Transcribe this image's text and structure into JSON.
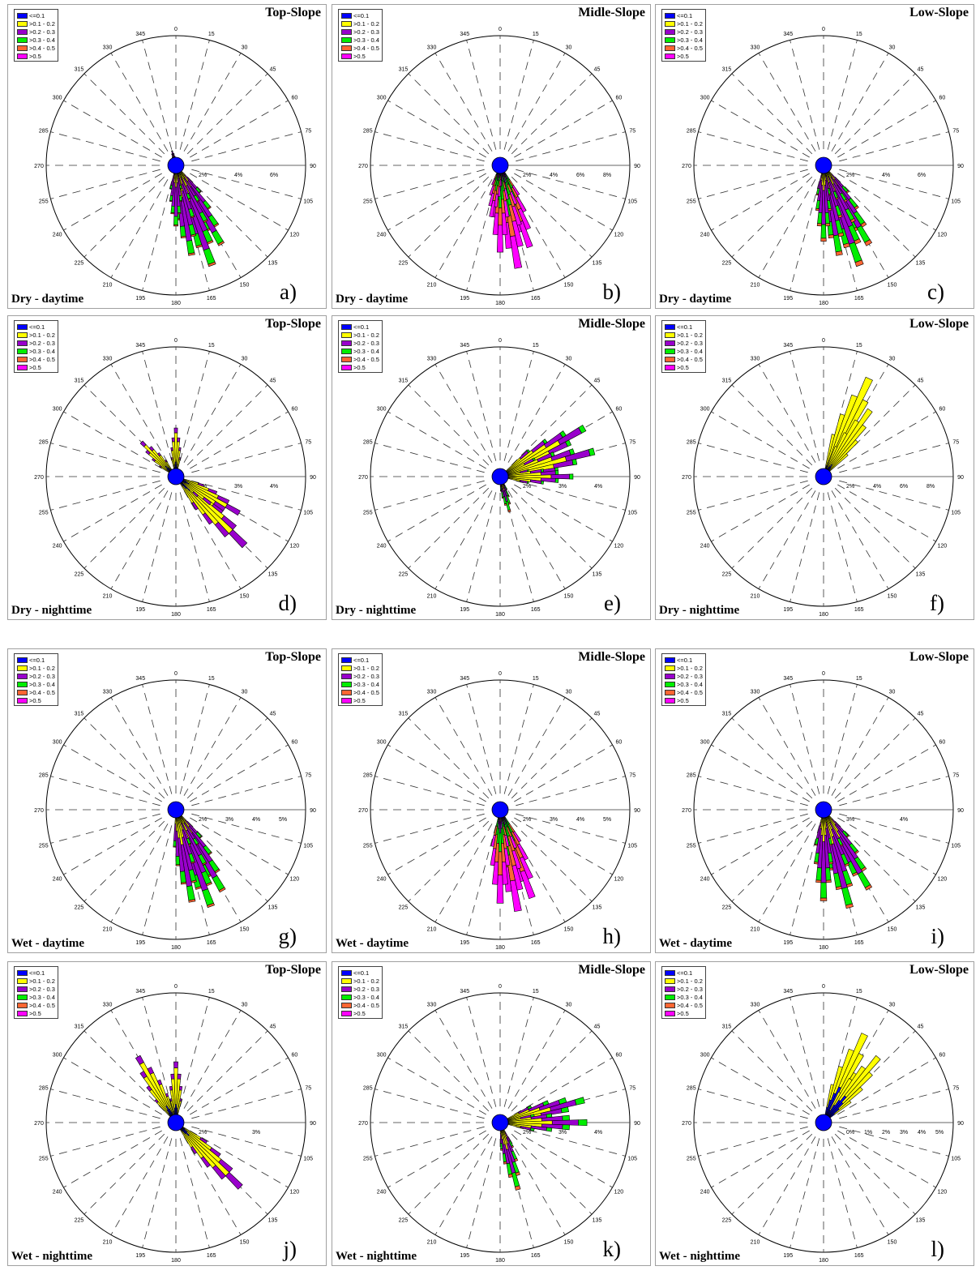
{
  "legend": [
    {
      "label": "<=0.1",
      "color": "#0000ff"
    },
    {
      "label": ">0.1 - 0.2",
      "color": "#ffff00"
    },
    {
      "label": ">0.2 - 0.3",
      "color": "#9900cc"
    },
    {
      "label": ">0.3 - 0.4",
      "color": "#00ee00"
    },
    {
      "label": ">0.4 - 0.5",
      "color": "#ff6633"
    },
    {
      "label": ">0.5",
      "color": "#ff00ff"
    }
  ],
  "direction_labels": [
    "0",
    "15",
    "30",
    "45",
    "60",
    "75",
    "90",
    "105",
    "120",
    "135",
    "150",
    "165",
    "180",
    "195",
    "210",
    "225",
    "240",
    "255",
    "270",
    "285",
    "300",
    "315",
    "330",
    "345"
  ],
  "panels": [
    {
      "letter": "a)",
      "title": "Top-Slope",
      "condition": "Dry - daytime",
      "rings": [
        "2%",
        "4%",
        "6%"
      ]
    },
    {
      "letter": "b)",
      "title": "Midle-Slope",
      "condition": "Dry - daytime",
      "rings": [
        "2%",
        "4%",
        "6%",
        "8%"
      ]
    },
    {
      "letter": "c)",
      "title": "Low-Slope",
      "condition": "Dry - daytime",
      "rings": [
        "2%",
        "4%",
        "6%"
      ]
    },
    {
      "letter": "d)",
      "title": "Top-Slope",
      "condition": "Dry - nighttime",
      "rings": [
        "2%",
        "3%",
        "4%"
      ]
    },
    {
      "letter": "e)",
      "title": "Midle-Slope",
      "condition": "Dry - nighttime",
      "rings": [
        "2%",
        "3%",
        "4%"
      ]
    },
    {
      "letter": "f)",
      "title": "Low-Slope",
      "condition": "Dry - nighttime",
      "rings": [
        "2%",
        "4%",
        "6%",
        "8%"
      ]
    },
    {
      "letter": "g)",
      "title": "Top-Slope",
      "condition": "Wet - daytime",
      "rings": [
        "2%",
        "3%",
        "4%",
        "5%"
      ]
    },
    {
      "letter": "h)",
      "title": "Midle-Slope",
      "condition": "Wet - daytime",
      "rings": [
        "2%",
        "3%",
        "4%",
        "5%"
      ]
    },
    {
      "letter": "i)",
      "title": "Low-Slope",
      "condition": "Wet - daytime",
      "rings": [
        "3%",
        "4%"
      ]
    },
    {
      "letter": "j)",
      "title": "Top-Slope",
      "condition": "Wet - nighttime",
      "rings": [
        "2%",
        "3%"
      ]
    },
    {
      "letter": "k)",
      "title": "Midle-Slope",
      "condition": "Wet - nighttime",
      "rings": [
        "2%",
        "3%",
        "4%"
      ]
    },
    {
      "letter": "l)",
      "title": "Low-Slope",
      "condition": "Wet - nighttime",
      "rings": [
        "0%",
        "1%",
        "2%",
        "3%",
        "4%",
        "5%"
      ]
    }
  ],
  "chart_data": [
    {
      "type": "rose",
      "panel": "a)",
      "title": "Top-Slope",
      "condition": "Dry - daytime",
      "petals": [
        {
          "dir": 150,
          "value": 6,
          "stack": [
            0.06,
            0.3,
            0.48,
            0.14,
            0.02,
            0
          ]
        },
        {
          "dir": 160,
          "value": 7,
          "stack": [
            0.06,
            0.3,
            0.48,
            0.14,
            0.02,
            0
          ]
        },
        {
          "dir": 170,
          "value": 6,
          "stack": [
            0.06,
            0.3,
            0.48,
            0.14,
            0.02,
            0
          ]
        },
        {
          "dir": 180,
          "value": 4,
          "stack": [
            0.06,
            0.3,
            0.48,
            0.14,
            0.02,
            0
          ]
        },
        {
          "dir": 345,
          "value": 1,
          "stack": [
            0.3,
            0.4,
            0.25,
            0.05,
            0,
            0
          ]
        }
      ]
    },
    {
      "type": "rose",
      "panel": "b)",
      "title": "Midle-Slope",
      "condition": "Dry - daytime",
      "petals": [
        {
          "dir": 160,
          "value": 5,
          "stack": [
            0.04,
            0.1,
            0.15,
            0.2,
            0.2,
            0.31
          ]
        },
        {
          "dir": 170,
          "value": 6,
          "stack": [
            0.04,
            0.1,
            0.15,
            0.2,
            0.2,
            0.31
          ]
        },
        {
          "dir": 180,
          "value": 5,
          "stack": [
            0.04,
            0.1,
            0.15,
            0.2,
            0.2,
            0.31
          ]
        },
        {
          "dir": 190,
          "value": 3,
          "stack": [
            0.04,
            0.1,
            0.15,
            0.2,
            0.2,
            0.31
          ]
        }
      ]
    },
    {
      "type": "rose",
      "panel": "c)",
      "title": "Low-Slope",
      "condition": "Dry - daytime",
      "petals": [
        {
          "dir": 150,
          "value": 6,
          "stack": [
            0.05,
            0.28,
            0.45,
            0.18,
            0.04,
            0
          ]
        },
        {
          "dir": 160,
          "value": 7,
          "stack": [
            0.05,
            0.28,
            0.45,
            0.18,
            0.04,
            0
          ]
        },
        {
          "dir": 170,
          "value": 6,
          "stack": [
            0.05,
            0.28,
            0.45,
            0.18,
            0.04,
            0
          ]
        },
        {
          "dir": 180,
          "value": 5,
          "stack": [
            0.05,
            0.28,
            0.45,
            0.18,
            0.04,
            0
          ]
        }
      ]
    },
    {
      "type": "rose",
      "panel": "d)",
      "title": "Top-Slope",
      "condition": "Dry - nighttime",
      "petals": [
        {
          "dir": 135,
          "value": 4,
          "stack": [
            0.2,
            0.6,
            0.2,
            0,
            0,
            0
          ]
        },
        {
          "dir": 120,
          "value": 3,
          "stack": [
            0.2,
            0.6,
            0.2,
            0,
            0,
            0
          ]
        },
        {
          "dir": 0,
          "value": 2,
          "stack": [
            0.3,
            0.6,
            0.1,
            0,
            0,
            0
          ]
        },
        {
          "dir": 315,
          "value": 2,
          "stack": [
            0.3,
            0.6,
            0.1,
            0,
            0,
            0
          ]
        }
      ]
    },
    {
      "type": "rose",
      "panel": "e)",
      "title": "Midle-Slope",
      "condition": "Dry - nighttime",
      "petals": [
        {
          "dir": 60,
          "value": 4,
          "stack": [
            0.05,
            0.65,
            0.25,
            0.05,
            0,
            0
          ]
        },
        {
          "dir": 75,
          "value": 4,
          "stack": [
            0.05,
            0.65,
            0.25,
            0.05,
            0,
            0
          ]
        },
        {
          "dir": 90,
          "value": 3,
          "stack": [
            0.05,
            0.65,
            0.25,
            0.05,
            0,
            0
          ]
        },
        {
          "dir": 165,
          "value": 1.5,
          "stack": [
            0.1,
            0.3,
            0.3,
            0.25,
            0.05,
            0
          ]
        }
      ]
    },
    {
      "type": "rose",
      "panel": "f)",
      "title": "Low-Slope",
      "condition": "Dry - nighttime",
      "petals": [
        {
          "dir": 25,
          "value": 8,
          "stack": [
            0.18,
            0.82,
            0,
            0,
            0,
            0
          ]
        },
        {
          "dir": 35,
          "value": 6,
          "stack": [
            0.18,
            0.82,
            0,
            0,
            0,
            0
          ]
        }
      ]
    },
    {
      "type": "rose",
      "panel": "g)",
      "title": "Top-Slope",
      "condition": "Wet - daytime",
      "petals": [
        {
          "dir": 150,
          "value": 5,
          "stack": [
            0.06,
            0.32,
            0.45,
            0.15,
            0.02,
            0
          ]
        },
        {
          "dir": 160,
          "value": 5.5,
          "stack": [
            0.06,
            0.32,
            0.45,
            0.15,
            0.02,
            0
          ]
        },
        {
          "dir": 170,
          "value": 5,
          "stack": [
            0.06,
            0.32,
            0.45,
            0.15,
            0.02,
            0
          ]
        }
      ]
    },
    {
      "type": "rose",
      "panel": "h)",
      "title": "Midle-Slope",
      "condition": "Wet - daytime",
      "petals": [
        {
          "dir": 160,
          "value": 5,
          "stack": [
            0.03,
            0.1,
            0.12,
            0.2,
            0.25,
            0.3
          ]
        },
        {
          "dir": 170,
          "value": 5.5,
          "stack": [
            0.03,
            0.1,
            0.12,
            0.2,
            0.25,
            0.3
          ]
        },
        {
          "dir": 180,
          "value": 5,
          "stack": [
            0.03,
            0.1,
            0.12,
            0.2,
            0.25,
            0.3
          ]
        }
      ]
    },
    {
      "type": "rose",
      "panel": "i)",
      "title": "Low-Slope",
      "condition": "Wet - daytime",
      "petals": [
        {
          "dir": 150,
          "value": 4.5,
          "stack": [
            0.05,
            0.3,
            0.45,
            0.17,
            0.03,
            0
          ]
        },
        {
          "dir": 165,
          "value": 5,
          "stack": [
            0.05,
            0.3,
            0.45,
            0.17,
            0.03,
            0
          ]
        },
        {
          "dir": 180,
          "value": 4.5,
          "stack": [
            0.05,
            0.3,
            0.45,
            0.17,
            0.03,
            0
          ]
        }
      ]
    },
    {
      "type": "rose",
      "panel": "j)",
      "title": "Top-Slope",
      "condition": "Wet - nighttime",
      "petals": [
        {
          "dir": 135,
          "value": 3,
          "stack": [
            0.2,
            0.6,
            0.2,
            0,
            0,
            0
          ]
        },
        {
          "dir": 330,
          "value": 2.5,
          "stack": [
            0.25,
            0.65,
            0.1,
            0,
            0,
            0
          ]
        },
        {
          "dir": 0,
          "value": 2,
          "stack": [
            0.3,
            0.6,
            0.1,
            0,
            0,
            0
          ]
        }
      ]
    },
    {
      "type": "rose",
      "panel": "k)",
      "title": "Midle-Slope",
      "condition": "Wet - nighttime",
      "petals": [
        {
          "dir": 75,
          "value": 2.5,
          "stack": [
            0.1,
            0.5,
            0.3,
            0.1,
            0,
            0
          ]
        },
        {
          "dir": 90,
          "value": 2.5,
          "stack": [
            0.1,
            0.5,
            0.3,
            0.1,
            0,
            0
          ]
        },
        {
          "dir": 165,
          "value": 2,
          "stack": [
            0.1,
            0.3,
            0.35,
            0.2,
            0.05,
            0
          ]
        }
      ]
    },
    {
      "type": "rose",
      "panel": "l)",
      "title": "Low-Slope",
      "condition": "Wet - nighttime",
      "petals": [
        {
          "dir": 25,
          "value": 4,
          "stack": [
            0.4,
            0.6,
            0,
            0,
            0,
            0
          ]
        },
        {
          "dir": 40,
          "value": 3.5,
          "stack": [
            0.4,
            0.6,
            0,
            0,
            0,
            0
          ]
        }
      ]
    }
  ]
}
